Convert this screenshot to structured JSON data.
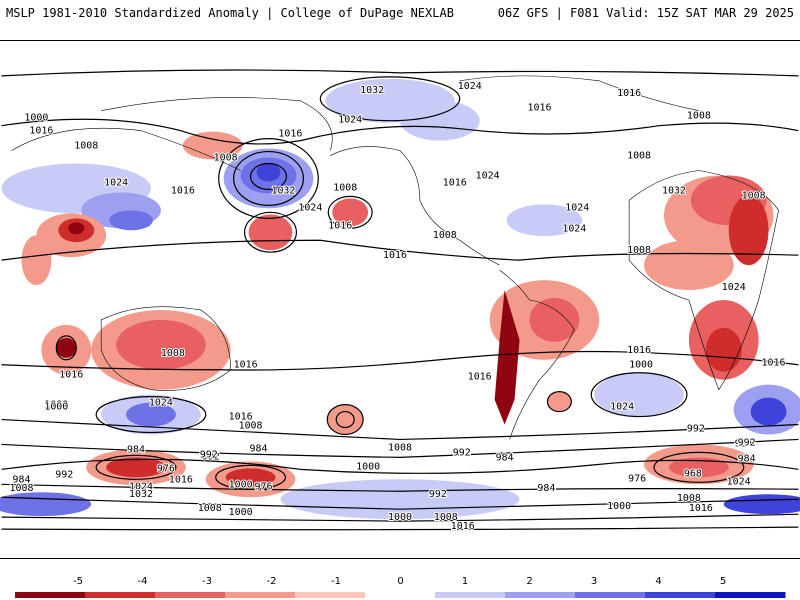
{
  "header": {
    "title_left": "MSLP 1981-2010 Standardized Anomaly | College of DuPage NEXLAB",
    "title_right": "06Z GFS | F081 Valid: 15Z SAT MAR 29 2025"
  },
  "colors": {
    "neg5": "#8e0410",
    "neg4": "#cf2c2c",
    "neg3": "#e86060",
    "neg2": "#f39a8a",
    "neg1": "#fbc8bb",
    "zero": "#ffffff",
    "pos1": "#c9cbf7",
    "pos2": "#9da0f0",
    "pos3": "#6e72e6",
    "pos4": "#3e43d9",
    "pos5": "#0d14c4",
    "land": "#000000"
  },
  "colorbar": {
    "ticks": [
      "-5",
      "-4",
      "-3",
      "-2",
      "-1",
      "0",
      "1",
      "2",
      "3",
      "4",
      "5"
    ]
  },
  "contour_labels": [
    "1024",
    "1016",
    "1008",
    "1032",
    "1000",
    "1016",
    "1008",
    "1032",
    "1024",
    "1024",
    "1016",
    "1016",
    "1008",
    "1008",
    "1024",
    "1032",
    "1016",
    "1008",
    "1016",
    "1008",
    "1024",
    "1008",
    "1016",
    "1016",
    "1024",
    "1016",
    "1016",
    "1024",
    "1008",
    "1024",
    "1016",
    "1000",
    "1024",
    "1008",
    "1000",
    "1000",
    "984",
    "992",
    "976",
    "1024",
    "1016",
    "1000",
    "1032",
    "1008",
    "984",
    "976",
    "992",
    "992",
    "1000",
    "1008",
    "992",
    "984",
    "1016",
    "1000",
    "1008",
    "1008",
    "984",
    "984",
    "1016",
    "1016",
    "1000",
    "984",
    "992",
    "1008",
    "1024",
    "1016",
    "992",
    "984",
    "976",
    "968",
    "1000",
    "1024",
    "1008",
    "992",
    "1016"
  ]
}
